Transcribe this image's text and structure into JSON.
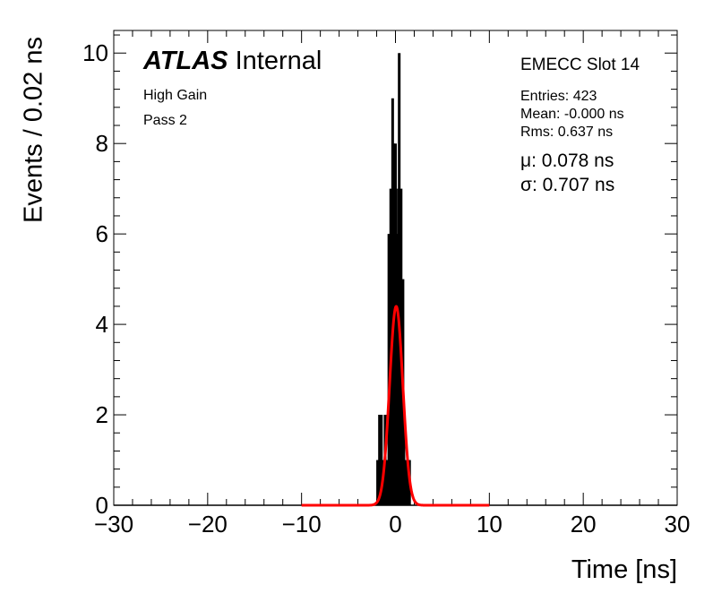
{
  "chart_data": {
    "type": "histogram",
    "xlabel": "Time [ns]",
    "ylabel": "Events / 0.02 ns",
    "xlim": [
      -30,
      30
    ],
    "ylim": [
      0,
      10.5
    ],
    "x_ticks": [
      -30,
      -20,
      -10,
      0,
      10,
      20,
      30
    ],
    "x_tick_labels": [
      "−30",
      "−20",
      "−10",
      "0",
      "10",
      "20",
      "30"
    ],
    "y_ticks": [
      0,
      2,
      4,
      6,
      8,
      10
    ],
    "y_tick_labels": [
      "0",
      "2",
      "4",
      "6",
      "8",
      "10"
    ],
    "grid": false,
    "bin_width": 0.02,
    "histogram_bins": [
      {
        "x": -1.9,
        "y": 1
      },
      {
        "x": -1.7,
        "y": 2
      },
      {
        "x": -1.5,
        "y": 2
      },
      {
        "x": -1.3,
        "y": 1
      },
      {
        "x": -1.1,
        "y": 2
      },
      {
        "x": -0.9,
        "y": 1
      },
      {
        "x": -0.7,
        "y": 6
      },
      {
        "x": -0.6,
        "y": 3
      },
      {
        "x": -0.5,
        "y": 7
      },
      {
        "x": -0.4,
        "y": 5
      },
      {
        "x": -0.3,
        "y": 9
      },
      {
        "x": -0.2,
        "y": 8
      },
      {
        "x": -0.1,
        "y": 7
      },
      {
        "x": 0.0,
        "y": 8
      },
      {
        "x": 0.1,
        "y": 6
      },
      {
        "x": 0.2,
        "y": 5
      },
      {
        "x": 0.3,
        "y": 7
      },
      {
        "x": 0.4,
        "y": 10
      },
      {
        "x": 0.5,
        "y": 4
      },
      {
        "x": 0.6,
        "y": 7
      },
      {
        "x": 0.7,
        "y": 3
      },
      {
        "x": 0.8,
        "y": 5
      },
      {
        "x": 0.9,
        "y": 2
      },
      {
        "x": 1.1,
        "y": 1
      },
      {
        "x": 1.3,
        "y": 1
      },
      {
        "x": 1.5,
        "y": 1
      }
    ],
    "fit": {
      "type": "gaussian",
      "color": "#ff0000",
      "mean": 0.078,
      "sigma": 0.707,
      "amplitude": 4.4,
      "x_range": [
        -10,
        10
      ]
    },
    "annotations": {
      "experiment": "ATLAS",
      "label": "Internal",
      "gain": "High Gain",
      "pass": "Pass 2",
      "slot": "EMECC Slot 14",
      "entries": "Entries: 423",
      "mean": "Mean: -0.000 ns",
      "rms": "Rms: 0.637 ns",
      "mu": "μ: 0.078 ns",
      "sigma": "σ: 0.707 ns"
    }
  }
}
